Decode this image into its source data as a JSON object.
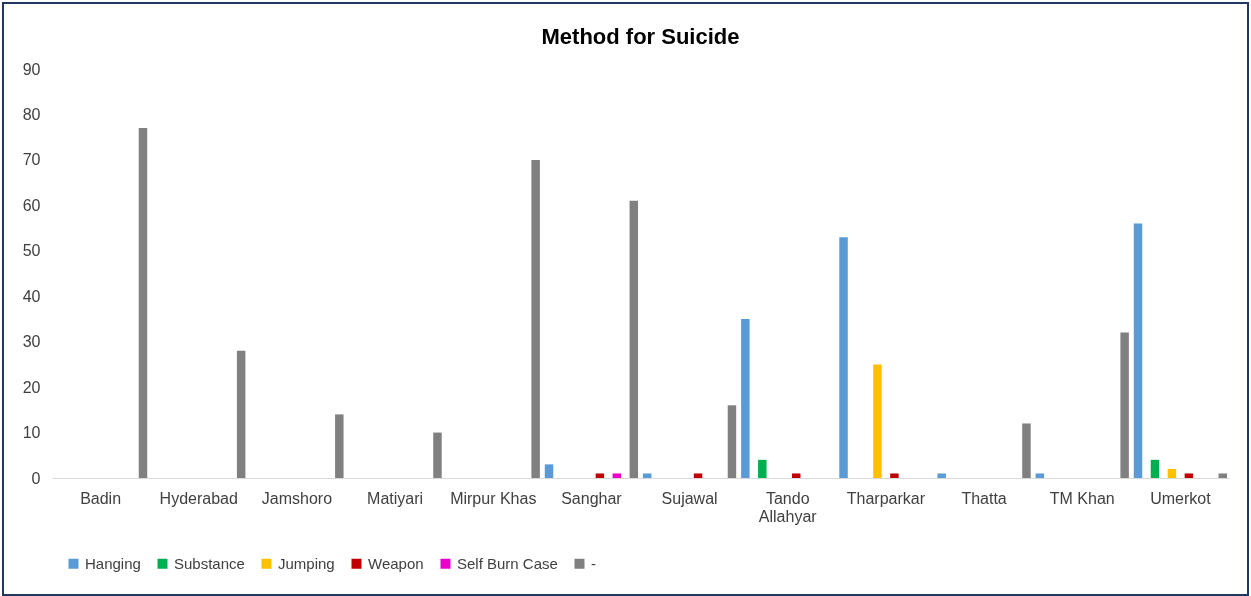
{
  "chart_data": {
    "type": "bar",
    "title": "Method for Suicide",
    "categories": [
      "Badin",
      "Hyderabad",
      "Jamshoro",
      "Matiyari",
      "Mirpur Khas",
      "Sanghar",
      "Sujawal",
      "Tando Allahyar",
      "Tharparkar",
      "Thatta",
      "TM Khan",
      "Umerkot"
    ],
    "series": [
      {
        "name": "Hanging",
        "color": "#5b9bd5",
        "values": [
          0,
          0,
          0,
          0,
          0,
          3,
          1,
          35,
          53,
          1,
          1,
          56
        ]
      },
      {
        "name": "Substance",
        "color": "#00b050",
        "values": [
          0,
          0,
          0,
          0,
          0,
          0,
          0,
          4,
          0,
          0,
          0,
          4
        ]
      },
      {
        "name": "Jumping",
        "color": "#ffc000",
        "values": [
          0,
          0,
          0,
          0,
          0,
          0,
          0,
          0,
          25,
          0,
          0,
          2
        ]
      },
      {
        "name": "Weapon",
        "color": "#c00000",
        "values": [
          0,
          0,
          0,
          0,
          0,
          1,
          1,
          1,
          1,
          0,
          0,
          1
        ]
      },
      {
        "name": "Self Burn Case",
        "color": "#e800c8",
        "values": [
          0,
          0,
          0,
          0,
          0,
          1,
          0,
          0,
          0,
          0,
          0,
          0
        ]
      },
      {
        "name": "-",
        "color": "#808080",
        "values": [
          77,
          28,
          14,
          10,
          70,
          61,
          16,
          0,
          0,
          12,
          32,
          1
        ]
      }
    ],
    "ylim": [
      0,
      90
    ],
    "yticks": [
      0,
      10,
      20,
      30,
      40,
      50,
      60,
      70,
      80,
      90
    ],
    "grid": false,
    "legend": "bottom"
  }
}
